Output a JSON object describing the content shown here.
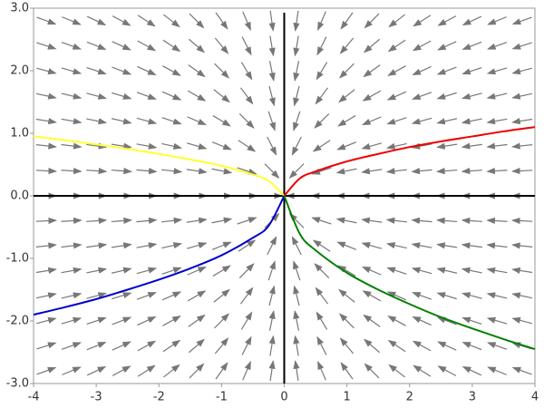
{
  "chart_data": {
    "type": "line",
    "xlim": [
      -4,
      4
    ],
    "ylim": [
      -3,
      3
    ],
    "xticks": [
      -4,
      -3,
      -2,
      -1,
      0,
      1,
      2,
      3,
      4
    ],
    "yticks": [
      {
        "value": -3,
        "label": "-3.0"
      },
      {
        "value": -2,
        "label": "-2.0"
      },
      {
        "value": -1,
        "label": "-1.0"
      },
      {
        "value": 0,
        "label": "0.0"
      },
      {
        "value": 1,
        "label": "1.0"
      },
      {
        "value": 2,
        "label": "2.0"
      },
      {
        "value": 3,
        "label": "3.0"
      }
    ],
    "series": [
      {
        "color": "#ffff33",
        "x": [
          0,
          -0.25,
          -0.5,
          -1,
          -1.5,
          -2,
          -2.5,
          -3,
          -3.5,
          -4
        ],
        "values": [
          0,
          0.24,
          0.34,
          0.48,
          0.58,
          0.67,
          0.75,
          0.82,
          0.89,
          0.95
        ]
      },
      {
        "color": "#ee0000",
        "x": [
          0,
          0.25,
          0.5,
          1,
          1.5,
          2,
          2.5,
          3,
          3.5,
          4
        ],
        "values": [
          0,
          0.28,
          0.39,
          0.55,
          0.67,
          0.78,
          0.87,
          0.95,
          1.03,
          1.1
        ]
      },
      {
        "color": "#0000cc",
        "x": [
          0,
          -0.25,
          -0.5,
          -1,
          -1.5,
          -2,
          -2.5,
          -3,
          -3.5,
          -4
        ],
        "values": [
          0,
          -0.48,
          -0.67,
          -0.95,
          -1.16,
          -1.34,
          -1.5,
          -1.65,
          -1.78,
          -1.9
        ]
      },
      {
        "color": "#008000",
        "x": [
          0,
          0.25,
          0.5,
          1,
          1.5,
          2,
          2.5,
          3,
          3.5,
          4
        ],
        "values": [
          0,
          -0.61,
          -0.87,
          -1.23,
          -1.5,
          -1.73,
          -1.94,
          -2.12,
          -2.29,
          -2.45
        ]
      }
    ]
  }
}
